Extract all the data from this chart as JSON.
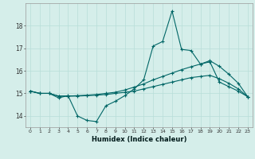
{
  "xlabel": "Humidex (Indice chaleur)",
  "background_color": "#d5eeea",
  "grid_color": "#b8ddd8",
  "line_color": "#006666",
  "xlim": [
    -0.5,
    23.5
  ],
  "ylim": [
    13.5,
    19.0
  ],
  "yticks": [
    14,
    15,
    16,
    17,
    18
  ],
  "xticks": [
    0,
    1,
    2,
    3,
    4,
    5,
    6,
    7,
    8,
    9,
    10,
    11,
    12,
    13,
    14,
    15,
    16,
    17,
    18,
    19,
    20,
    21,
    22,
    23
  ],
  "series1": [
    15.1,
    15.0,
    15.0,
    14.8,
    14.9,
    14.0,
    13.8,
    13.75,
    14.45,
    14.65,
    14.9,
    15.2,
    15.6,
    17.1,
    17.3,
    18.65,
    16.95,
    16.9,
    16.3,
    16.4,
    15.5,
    15.3,
    15.1,
    14.85
  ],
  "series2": [
    15.1,
    15.0,
    15.0,
    14.88,
    14.88,
    14.88,
    14.9,
    14.92,
    14.95,
    15.0,
    15.05,
    15.1,
    15.2,
    15.3,
    15.4,
    15.5,
    15.6,
    15.7,
    15.75,
    15.8,
    15.65,
    15.45,
    15.2,
    14.85
  ],
  "series3": [
    15.1,
    15.0,
    15.0,
    14.88,
    14.88,
    14.9,
    14.92,
    14.95,
    15.0,
    15.05,
    15.15,
    15.28,
    15.42,
    15.6,
    15.75,
    15.9,
    16.05,
    16.18,
    16.3,
    16.45,
    16.2,
    15.85,
    15.45,
    14.85
  ]
}
